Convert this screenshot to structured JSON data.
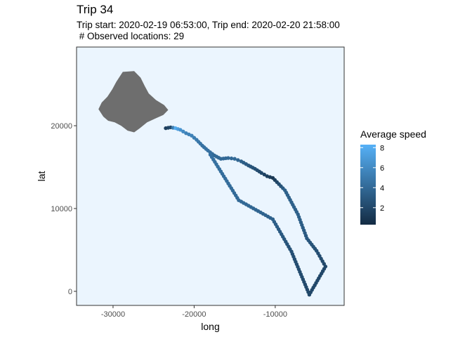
{
  "title": "Trip 34",
  "subtitle": "Trip start: 2020-02-19 06:53:00, Trip end: 2020-02-20 21:58:00\n # Observed locations: 29",
  "chart_data": {
    "type": "scatter",
    "xlabel": "long",
    "ylabel": "lat",
    "xlim": [
      -34500,
      -1500
    ],
    "ylim": [
      -1700,
      29500
    ],
    "xticks": [
      -30000,
      -20000,
      -10000
    ],
    "xtick_labels": [
      "-30000",
      "-20000",
      "-10000"
    ],
    "yticks": [
      0,
      10000,
      20000
    ],
    "ytick_labels": [
      "0",
      "10000",
      "20000"
    ],
    "grid": false,
    "panel_background": "#ebf5fe",
    "legend": {
      "title": "Average speed",
      "position": "right",
      "range": [
        0.3,
        8.3
      ],
      "ticks": [
        2,
        4,
        6,
        8
      ],
      "tick_labels": [
        "2",
        "4",
        "6",
        "8"
      ],
      "color_low": "#132b43",
      "color_high": "#56b1f7"
    },
    "land_color": "#6e6e6e",
    "land_polygon": [
      [
        -29600,
        25300
      ],
      [
        -28800,
        26500
      ],
      [
        -27400,
        26600
      ],
      [
        -26600,
        25800
      ],
      [
        -26100,
        24800
      ],
      [
        -25600,
        23900
      ],
      [
        -24700,
        23100
      ],
      [
        -23700,
        22500
      ],
      [
        -23200,
        21900
      ],
      [
        -23800,
        21300
      ],
      [
        -24700,
        20900
      ],
      [
        -25800,
        20400
      ],
      [
        -26700,
        19700
      ],
      [
        -27400,
        19200
      ],
      [
        -28200,
        19400
      ],
      [
        -29000,
        20000
      ],
      [
        -29800,
        20400
      ],
      [
        -30600,
        20600
      ],
      [
        -31200,
        21100
      ],
      [
        -31800,
        22000
      ],
      [
        -31400,
        22800
      ],
      [
        -30700,
        23500
      ],
      [
        -30100,
        24400
      ]
    ],
    "series": [
      {
        "values": [
          {
            "x": -23500,
            "y": 19700,
            "speed": 1.5
          },
          {
            "x": -22900,
            "y": 19800,
            "speed": 2.0
          },
          {
            "x": -22300,
            "y": 19700,
            "speed": 8.0
          },
          {
            "x": -21700,
            "y": 19500,
            "speed": 6.5
          },
          {
            "x": -21000,
            "y": 19100,
            "speed": 5.5
          },
          {
            "x": -20300,
            "y": 18800,
            "speed": 5.5
          },
          {
            "x": -19700,
            "y": 18300,
            "speed": 5.0
          },
          {
            "x": -19000,
            "y": 17600,
            "speed": 4.5
          },
          {
            "x": -18300,
            "y": 17000,
            "speed": 4.5
          },
          {
            "x": -17500,
            "y": 16400,
            "speed": 4.0
          },
          {
            "x": -16700,
            "y": 16000,
            "speed": 4.0
          },
          {
            "x": -15800,
            "y": 16100,
            "speed": 4.0
          },
          {
            "x": -15000,
            "y": 16000,
            "speed": 4.0
          },
          {
            "x": -14200,
            "y": 15700,
            "speed": 3.5
          },
          {
            "x": -13300,
            "y": 15200,
            "speed": 3.0
          },
          {
            "x": -12500,
            "y": 14800,
            "speed": 2.5
          },
          {
            "x": -11700,
            "y": 14300,
            "speed": 2.0
          },
          {
            "x": -11000,
            "y": 13900,
            "speed": 1.5
          },
          {
            "x": -10300,
            "y": 13700,
            "speed": 1.0
          },
          {
            "x": -8800,
            "y": 12200,
            "speed": 3.5
          },
          {
            "x": -7200,
            "y": 9300,
            "speed": 3.5
          },
          {
            "x": -6100,
            "y": 6400,
            "speed": 3.0
          },
          {
            "x": -4900,
            "y": 4900,
            "speed": 2.5
          },
          {
            "x": -3800,
            "y": 3000,
            "speed": 2.0
          },
          {
            "x": -5800,
            "y": -400,
            "speed": 2.0
          },
          {
            "x": -8000,
            "y": 4800,
            "speed": 2.5
          },
          {
            "x": -10300,
            "y": 8700,
            "speed": 3.5
          },
          {
            "x": -14500,
            "y": 11000,
            "speed": 4.0
          },
          {
            "x": -18000,
            "y": 16500,
            "speed": 4.5
          }
        ]
      }
    ]
  }
}
